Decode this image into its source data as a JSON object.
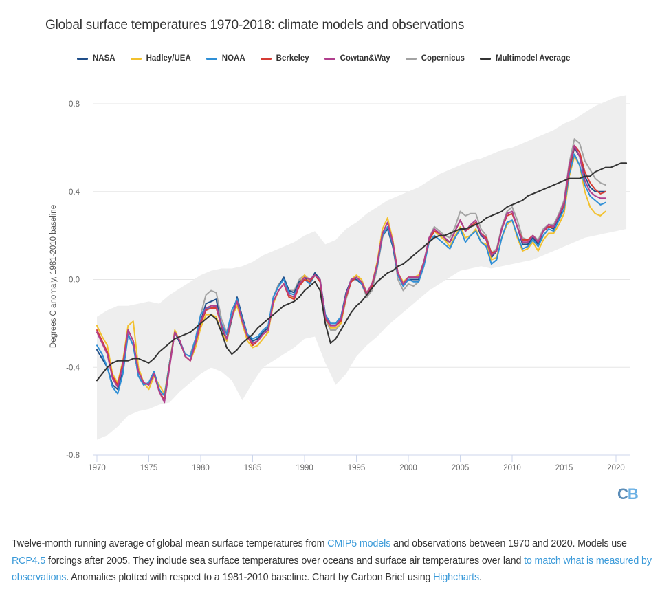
{
  "chart_data": {
    "type": "line",
    "title": "Global surface temperatures 1970-2018: climate models and observations",
    "xlabel": "",
    "ylabel": "Degrees C anomaly, 1981-2010 baseline",
    "xlim": [
      1970,
      2021
    ],
    "ylim": [
      -0.8,
      0.8
    ],
    "xticks": [
      "1970",
      "1975",
      "1980",
      "1985",
      "1990",
      "1995",
      "2000",
      "2005",
      "2010",
      "2015",
      "2020"
    ],
    "yticks": [
      "0.8",
      "0.4",
      "0.0",
      "-0.4",
      "-0.8"
    ],
    "grid": true,
    "legend_position": "top-center",
    "band": {
      "name": "CMIP5 model range",
      "color": "#eeeeee",
      "x": [
        1970,
        1971,
        1972,
        1973,
        1974,
        1975,
        1976,
        1977,
        1978,
        1979,
        1980,
        1981,
        1982,
        1983,
        1984,
        1985,
        1986,
        1987,
        1988,
        1989,
        1990,
        1991,
        1992,
        1993,
        1994,
        1995,
        1996,
        1997,
        1998,
        1999,
        2000,
        2001,
        2002,
        2003,
        2004,
        2005,
        2006,
        2007,
        2008,
        2009,
        2010,
        2011,
        2012,
        2013,
        2014,
        2015,
        2016,
        2017,
        2018,
        2019,
        2020,
        2021
      ],
      "upper": [
        -0.17,
        -0.14,
        -0.12,
        -0.12,
        -0.11,
        -0.1,
        -0.11,
        -0.07,
        -0.04,
        -0.01,
        0.02,
        0.04,
        0.05,
        0.05,
        0.06,
        0.08,
        0.11,
        0.13,
        0.15,
        0.17,
        0.2,
        0.22,
        0.16,
        0.18,
        0.23,
        0.26,
        0.3,
        0.33,
        0.36,
        0.38,
        0.4,
        0.42,
        0.45,
        0.48,
        0.5,
        0.52,
        0.54,
        0.55,
        0.57,
        0.59,
        0.6,
        0.62,
        0.64,
        0.66,
        0.68,
        0.71,
        0.73,
        0.76,
        0.79,
        0.81,
        0.83,
        0.84
      ],
      "lower": [
        -0.73,
        -0.71,
        -0.67,
        -0.62,
        -0.6,
        -0.59,
        -0.57,
        -0.56,
        -0.51,
        -0.47,
        -0.43,
        -0.4,
        -0.42,
        -0.46,
        -0.55,
        -0.47,
        -0.4,
        -0.37,
        -0.34,
        -0.31,
        -0.27,
        -0.26,
        -0.38,
        -0.48,
        -0.43,
        -0.35,
        -0.3,
        -0.26,
        -0.21,
        -0.17,
        -0.13,
        -0.09,
        -0.05,
        -0.02,
        0.01,
        0.04,
        0.05,
        0.06,
        0.05,
        0.06,
        0.07,
        0.08,
        0.09,
        0.11,
        0.13,
        0.15,
        0.17,
        0.19,
        0.2,
        0.21,
        0.22,
        0.23
      ]
    },
    "x": [
      1970.0,
      1970.5,
      1971.0,
      1971.5,
      1972.0,
      1972.5,
      1973.0,
      1973.5,
      1974.0,
      1974.5,
      1975.0,
      1975.5,
      1976.0,
      1976.5,
      1977.0,
      1977.5,
      1978.0,
      1978.5,
      1979.0,
      1979.5,
      1980.0,
      1980.5,
      1981.0,
      1981.5,
      1982.0,
      1982.5,
      1983.0,
      1983.5,
      1984.0,
      1984.5,
      1985.0,
      1985.5,
      1986.0,
      1986.5,
      1987.0,
      1987.5,
      1988.0,
      1988.5,
      1989.0,
      1989.5,
      1990.0,
      1990.5,
      1991.0,
      1991.5,
      1992.0,
      1992.5,
      1993.0,
      1993.5,
      1994.0,
      1994.5,
      1995.0,
      1995.5,
      1996.0,
      1996.5,
      1997.0,
      1997.5,
      1998.0,
      1998.5,
      1999.0,
      1999.5,
      2000.0,
      2000.5,
      2001.0,
      2001.5,
      2002.0,
      2002.5,
      2003.0,
      2003.5,
      2004.0,
      2004.5,
      2005.0,
      2005.5,
      2006.0,
      2006.5,
      2007.0,
      2007.5,
      2008.0,
      2008.5,
      2009.0,
      2009.5,
      2010.0,
      2010.5,
      2011.0,
      2011.5,
      2012.0,
      2012.5,
      2013.0,
      2013.5,
      2014.0,
      2014.5,
      2015.0,
      2015.5,
      2016.0,
      2016.5,
      2017.0,
      2017.5,
      2018.0,
      2018.5,
      2019.0
    ],
    "series": [
      {
        "name": "NASA",
        "color": "#1f4e89",
        "values": [
          -0.32,
          -0.36,
          -0.4,
          -0.48,
          -0.5,
          -0.42,
          -0.25,
          -0.3,
          -0.44,
          -0.48,
          -0.47,
          -0.42,
          -0.5,
          -0.53,
          -0.38,
          -0.24,
          -0.29,
          -0.34,
          -0.35,
          -0.28,
          -0.19,
          -0.11,
          -0.1,
          -0.09,
          -0.22,
          -0.28,
          -0.18,
          -0.08,
          -0.17,
          -0.25,
          -0.28,
          -0.27,
          -0.24,
          -0.22,
          -0.08,
          -0.03,
          0.01,
          -0.05,
          -0.06,
          -0.01,
          0.01,
          -0.01,
          0.03,
          0.0,
          -0.16,
          -0.2,
          -0.2,
          -0.17,
          -0.06,
          0.0,
          0.0,
          -0.02,
          -0.07,
          -0.03,
          0.06,
          0.2,
          0.23,
          0.15,
          0.02,
          -0.03,
          0.0,
          0.0,
          0.0,
          0.08,
          0.18,
          0.22,
          0.2,
          0.18,
          0.17,
          0.22,
          0.27,
          0.22,
          0.24,
          0.26,
          0.2,
          0.18,
          0.1,
          0.13,
          0.23,
          0.3,
          0.31,
          0.24,
          0.16,
          0.16,
          0.19,
          0.16,
          0.22,
          0.24,
          0.23,
          0.28,
          0.34,
          0.5,
          0.6,
          0.56,
          0.47,
          0.42,
          0.4,
          0.4,
          0.4
        ]
      },
      {
        "name": "Hadley/UEA",
        "color": "#f2c12e",
        "values": [
          -0.21,
          -0.26,
          -0.3,
          -0.43,
          -0.47,
          -0.37,
          -0.21,
          -0.19,
          -0.4,
          -0.47,
          -0.5,
          -0.44,
          -0.48,
          -0.52,
          -0.38,
          -0.23,
          -0.28,
          -0.35,
          -0.37,
          -0.31,
          -0.22,
          -0.16,
          -0.16,
          -0.17,
          -0.24,
          -0.28,
          -0.17,
          -0.12,
          -0.2,
          -0.28,
          -0.31,
          -0.3,
          -0.27,
          -0.24,
          -0.11,
          -0.05,
          -0.02,
          -0.07,
          -0.09,
          -0.02,
          0.02,
          -0.01,
          0.02,
          0.0,
          -0.17,
          -0.22,
          -0.22,
          -0.2,
          -0.08,
          0.0,
          0.02,
          0.0,
          -0.06,
          -0.02,
          0.08,
          0.23,
          0.28,
          0.18,
          0.03,
          -0.01,
          0.01,
          0.01,
          0.02,
          0.08,
          0.18,
          0.22,
          0.2,
          0.18,
          0.15,
          0.2,
          0.24,
          0.19,
          0.2,
          0.23,
          0.17,
          0.16,
          0.09,
          0.1,
          0.19,
          0.25,
          0.27,
          0.19,
          0.13,
          0.14,
          0.17,
          0.13,
          0.18,
          0.21,
          0.21,
          0.25,
          0.3,
          0.47,
          0.56,
          0.52,
          0.4,
          0.33,
          0.3,
          0.29,
          0.31
        ]
      },
      {
        "name": "NOAA",
        "color": "#2f8fd6",
        "values": [
          -0.3,
          -0.34,
          -0.4,
          -0.49,
          -0.52,
          -0.43,
          -0.25,
          -0.3,
          -0.44,
          -0.48,
          -0.47,
          -0.42,
          -0.5,
          -0.53,
          -0.38,
          -0.24,
          -0.28,
          -0.34,
          -0.35,
          -0.27,
          -0.16,
          -0.13,
          -0.13,
          -0.12,
          -0.2,
          -0.25,
          -0.14,
          -0.09,
          -0.18,
          -0.25,
          -0.27,
          -0.26,
          -0.23,
          -0.21,
          -0.08,
          -0.03,
          0.0,
          -0.06,
          -0.07,
          -0.02,
          0.0,
          -0.02,
          0.02,
          0.0,
          -0.16,
          -0.2,
          -0.2,
          -0.17,
          -0.07,
          0.0,
          0.01,
          -0.02,
          -0.07,
          -0.03,
          0.06,
          0.2,
          0.24,
          0.16,
          0.02,
          -0.03,
          0.0,
          -0.01,
          -0.01,
          0.06,
          0.17,
          0.2,
          0.18,
          0.16,
          0.14,
          0.19,
          0.23,
          0.17,
          0.2,
          0.22,
          0.17,
          0.15,
          0.07,
          0.09,
          0.19,
          0.26,
          0.27,
          0.2,
          0.14,
          0.15,
          0.18,
          0.15,
          0.2,
          0.23,
          0.22,
          0.27,
          0.32,
          0.48,
          0.57,
          0.52,
          0.43,
          0.38,
          0.36,
          0.34,
          0.35
        ]
      },
      {
        "name": "Berkeley",
        "color": "#d63b34",
        "values": [
          -0.23,
          -0.28,
          -0.33,
          -0.44,
          -0.48,
          -0.38,
          -0.23,
          -0.28,
          -0.42,
          -0.47,
          -0.48,
          -0.43,
          -0.51,
          -0.55,
          -0.39,
          -0.24,
          -0.28,
          -0.35,
          -0.37,
          -0.29,
          -0.2,
          -0.14,
          -0.13,
          -0.13,
          -0.21,
          -0.27,
          -0.17,
          -0.1,
          -0.19,
          -0.26,
          -0.3,
          -0.28,
          -0.25,
          -0.23,
          -0.1,
          -0.05,
          -0.02,
          -0.08,
          -0.09,
          -0.03,
          0.0,
          -0.01,
          0.02,
          -0.01,
          -0.18,
          -0.21,
          -0.21,
          -0.19,
          -0.08,
          -0.01,
          0.01,
          -0.01,
          -0.07,
          -0.03,
          0.07,
          0.21,
          0.26,
          0.17,
          0.03,
          -0.02,
          0.01,
          0.01,
          0.01,
          0.08,
          0.18,
          0.22,
          0.21,
          0.19,
          0.17,
          0.22,
          0.27,
          0.22,
          0.24,
          0.26,
          0.21,
          0.19,
          0.12,
          0.13,
          0.23,
          0.29,
          0.3,
          0.24,
          0.18,
          0.18,
          0.2,
          0.17,
          0.22,
          0.24,
          0.24,
          0.29,
          0.34,
          0.5,
          0.61,
          0.58,
          0.49,
          0.44,
          0.41,
          0.39,
          0.4
        ]
      },
      {
        "name": "Cowtan&Way",
        "color": "#b13f8d",
        "values": [
          -0.24,
          -0.29,
          -0.34,
          -0.45,
          -0.49,
          -0.39,
          -0.23,
          -0.28,
          -0.42,
          -0.47,
          -0.48,
          -0.43,
          -0.51,
          -0.56,
          -0.4,
          -0.24,
          -0.28,
          -0.35,
          -0.37,
          -0.29,
          -0.19,
          -0.13,
          -0.12,
          -0.12,
          -0.21,
          -0.27,
          -0.17,
          -0.1,
          -0.19,
          -0.26,
          -0.29,
          -0.28,
          -0.25,
          -0.23,
          -0.1,
          -0.05,
          -0.02,
          -0.07,
          -0.08,
          -0.02,
          0.01,
          0.0,
          0.02,
          0.0,
          -0.17,
          -0.21,
          -0.21,
          -0.18,
          -0.07,
          0.0,
          0.01,
          -0.01,
          -0.06,
          -0.02,
          0.07,
          0.21,
          0.26,
          0.17,
          0.03,
          -0.02,
          0.01,
          0.01,
          0.01,
          0.08,
          0.19,
          0.23,
          0.21,
          0.19,
          0.17,
          0.22,
          0.27,
          0.22,
          0.25,
          0.27,
          0.21,
          0.18,
          0.11,
          0.13,
          0.23,
          0.3,
          0.31,
          0.24,
          0.17,
          0.17,
          0.2,
          0.17,
          0.22,
          0.25,
          0.24,
          0.29,
          0.35,
          0.52,
          0.61,
          0.56,
          0.45,
          0.4,
          0.38,
          0.37,
          0.37
        ]
      },
      {
        "name": "Copernicus",
        "color": "#a3a3a3",
        "values": [
          null,
          null,
          null,
          null,
          null,
          null,
          null,
          null,
          null,
          null,
          null,
          null,
          null,
          null,
          null,
          null,
          null,
          null,
          -0.34,
          -0.27,
          -0.16,
          -0.07,
          -0.05,
          -0.06,
          -0.18,
          -0.24,
          -0.16,
          -0.1,
          -0.18,
          -0.25,
          -0.28,
          -0.27,
          -0.24,
          -0.21,
          -0.08,
          -0.02,
          0.0,
          -0.05,
          -0.05,
          0.0,
          0.02,
          0.0,
          0.02,
          -0.01,
          -0.18,
          -0.23,
          -0.23,
          -0.2,
          -0.09,
          -0.01,
          0.01,
          -0.02,
          -0.08,
          -0.05,
          0.05,
          0.19,
          0.24,
          0.15,
          0.0,
          -0.05,
          -0.02,
          -0.03,
          -0.01,
          0.07,
          0.19,
          0.24,
          0.22,
          0.2,
          0.19,
          0.24,
          0.31,
          0.29,
          0.3,
          0.3,
          0.23,
          0.2,
          0.12,
          0.14,
          0.24,
          0.31,
          0.33,
          0.27,
          0.19,
          0.18,
          0.2,
          0.18,
          0.23,
          0.25,
          0.25,
          0.3,
          0.36,
          0.53,
          0.64,
          0.62,
          0.54,
          0.5,
          0.46,
          0.44,
          0.43
        ]
      },
      {
        "name": "Multimodel Average",
        "color": "#333333",
        "values": [
          -0.46,
          -0.43,
          -0.4,
          -0.38,
          -0.37,
          -0.37,
          -0.37,
          -0.36,
          -0.36,
          -0.37,
          -0.38,
          -0.36,
          -0.33,
          -0.31,
          -0.29,
          -0.27,
          -0.26,
          -0.25,
          -0.24,
          -0.22,
          -0.2,
          -0.18,
          -0.16,
          -0.18,
          -0.24,
          -0.31,
          -0.34,
          -0.32,
          -0.29,
          -0.27,
          -0.25,
          -0.22,
          -0.2,
          -0.18,
          -0.16,
          -0.14,
          -0.12,
          -0.11,
          -0.1,
          -0.08,
          -0.05,
          -0.03,
          -0.01,
          -0.05,
          -0.2,
          -0.29,
          -0.27,
          -0.23,
          -0.19,
          -0.15,
          -0.12,
          -0.1,
          -0.07,
          -0.04,
          -0.01,
          0.01,
          0.03,
          0.04,
          0.06,
          0.07,
          0.09,
          0.11,
          0.13,
          0.15,
          0.17,
          0.19,
          0.2,
          0.2,
          0.21,
          0.22,
          0.23,
          0.23,
          0.24,
          0.25,
          0.26,
          0.28,
          0.29,
          0.3,
          0.31,
          0.33,
          0.34,
          0.35,
          0.36,
          0.38,
          0.39,
          0.4,
          0.41,
          0.42,
          0.43,
          0.44,
          0.45,
          0.46,
          0.46,
          0.46,
          0.47,
          0.47,
          0.49,
          0.5,
          0.51
        ]
      }
    ],
    "multimodel_tail": {
      "x": [
        2019.5,
        2020.0,
        2020.5,
        2021.0
      ],
      "values": [
        0.51,
        0.52,
        0.53,
        0.53
      ]
    }
  },
  "legend": [
    {
      "label": "NASA",
      "color": "#1f4e89"
    },
    {
      "label": "Hadley/UEA",
      "color": "#f2c12e"
    },
    {
      "label": "NOAA",
      "color": "#2f8fd6"
    },
    {
      "label": "Berkeley",
      "color": "#d63b34"
    },
    {
      "label": "Cowtan&Way",
      "color": "#b13f8d"
    },
    {
      "label": "Copernicus",
      "color": "#a3a3a3"
    },
    {
      "label": "Multimodel Average",
      "color": "#333333"
    }
  ],
  "logo": {
    "c": "C",
    "b": "B"
  },
  "caption": {
    "t1": "Twelve-month running average of global mean surface temperatures from ",
    "link1": "CMIP5 models",
    "t2": " and observations between 1970 and 2020. Models use ",
    "link2": "RCP4.5",
    "t3": " forcings after 2005. They include sea surface temperatures over oceans and surface air temperatures over land ",
    "link3": "to match what is measured by observations",
    "t4": ". Anomalies plotted with respect to a 1981-2010 baseline. Chart by Carbon Brief using ",
    "link4": "Highcharts",
    "t5": "."
  }
}
